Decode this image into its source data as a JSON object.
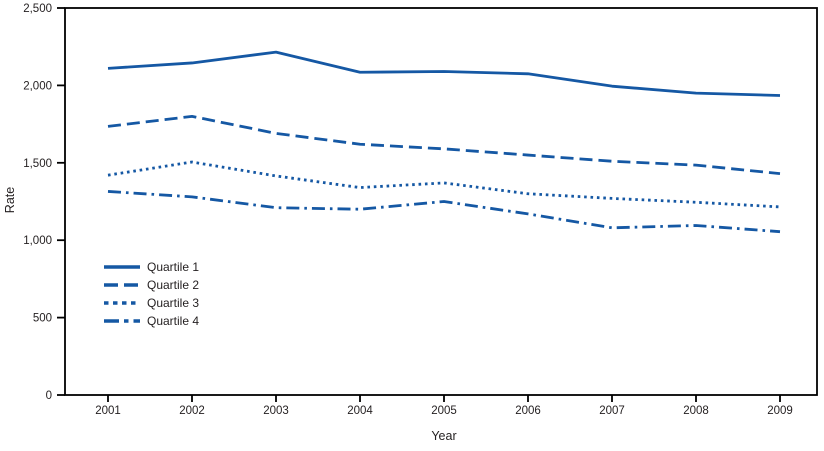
{
  "chart_data": {
    "type": "line",
    "xlabel": "Year",
    "ylabel": "Rate",
    "x_labels": [
      "2001",
      "2002",
      "2003",
      "2004",
      "2005",
      "2006",
      "2007",
      "2008",
      "2009"
    ],
    "y_ticks": [
      {
        "value": 0,
        "label": "0"
      },
      {
        "value": 500,
        "label": "500"
      },
      {
        "value": 1000,
        "label": "1,000"
      },
      {
        "value": 1500,
        "label": "1,500"
      },
      {
        "value": 2000,
        "label": "2,000"
      },
      {
        "value": 2500,
        "label": "2,500"
      }
    ],
    "ylim": [
      0,
      2500
    ],
    "grid": false,
    "line_color": "#1558a4",
    "axis_color": "#000000",
    "text_color": "#231f20",
    "legend_position": "inside-left",
    "series": [
      {
        "name": "Quartile 1",
        "style": "solid",
        "values": [
          2110,
          2145,
          2215,
          2085,
          2090,
          2075,
          1995,
          1950,
          1935
        ]
      },
      {
        "name": "Quartile 2",
        "style": "dashed",
        "values": [
          1735,
          1800,
          1690,
          1620,
          1590,
          1550,
          1510,
          1485,
          1430
        ]
      },
      {
        "name": "Quartile 3",
        "style": "dotted",
        "values": [
          1420,
          1505,
          1415,
          1340,
          1370,
          1300,
          1270,
          1245,
          1215
        ]
      },
      {
        "name": "Quartile 4",
        "style": "dashdot",
        "values": [
          1315,
          1280,
          1210,
          1200,
          1250,
          1170,
          1080,
          1095,
          1055
        ]
      }
    ]
  }
}
